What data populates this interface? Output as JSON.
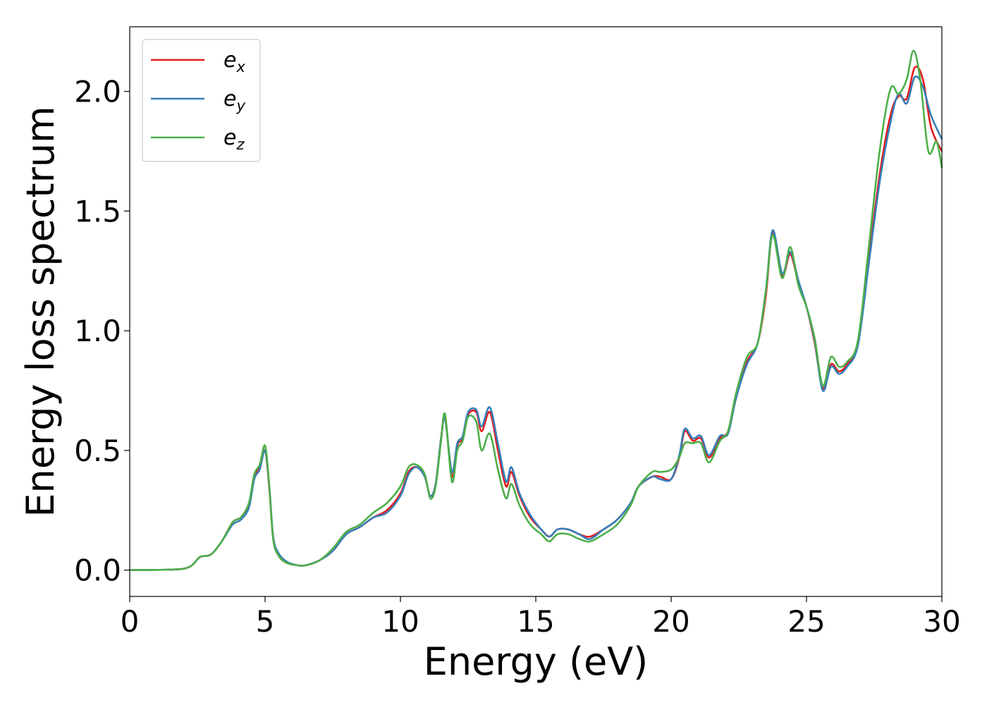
{
  "chart_data": {
    "type": "line",
    "title": "",
    "xlabel": "Energy (eV)",
    "ylabel": "Energy loss spectrum",
    "xlim": [
      0,
      30
    ],
    "ylim": [
      -0.11,
      2.27
    ],
    "xticks": [
      "0",
      "5",
      "10",
      "15",
      "20",
      "25",
      "30"
    ],
    "xtick_values": [
      0,
      5,
      10,
      15,
      20,
      25,
      30
    ],
    "yticks": [
      "0.0",
      "0.5",
      "1.0",
      "1.5",
      "2.0"
    ],
    "ytick_values": [
      0.0,
      0.5,
      1.0,
      1.5,
      2.0
    ],
    "grid": false,
    "legend_position": "top-left",
    "series": [
      {
        "name": "e_x",
        "legend_main": "e",
        "legend_sub": "x",
        "color": "#e41a1c",
        "points": [
          [
            0,
            0
          ],
          [
            1,
            0.001
          ],
          [
            1.5,
            0.002
          ],
          [
            2,
            0.006
          ],
          [
            2.3,
            0.02
          ],
          [
            2.6,
            0.055
          ],
          [
            3,
            0.065
          ],
          [
            3.4,
            0.12
          ],
          [
            3.8,
            0.2
          ],
          [
            4.1,
            0.22
          ],
          [
            4.4,
            0.27
          ],
          [
            4.6,
            0.39
          ],
          [
            4.8,
            0.43
          ],
          [
            5.0,
            0.5
          ],
          [
            5.15,
            0.35
          ],
          [
            5.3,
            0.13
          ],
          [
            5.5,
            0.06
          ],
          [
            5.8,
            0.03
          ],
          [
            6.2,
            0.02
          ],
          [
            6.5,
            0.02
          ],
          [
            7,
            0.04
          ],
          [
            7.5,
            0.08
          ],
          [
            8,
            0.15
          ],
          [
            8.5,
            0.18
          ],
          [
            9,
            0.22
          ],
          [
            9.5,
            0.25
          ],
          [
            10,
            0.32
          ],
          [
            10.3,
            0.41
          ],
          [
            10.6,
            0.43
          ],
          [
            10.9,
            0.39
          ],
          [
            11.1,
            0.31
          ],
          [
            11.3,
            0.36
          ],
          [
            11.5,
            0.55
          ],
          [
            11.65,
            0.64
          ],
          [
            11.9,
            0.39
          ],
          [
            12.1,
            0.52
          ],
          [
            12.3,
            0.55
          ],
          [
            12.5,
            0.65
          ],
          [
            12.8,
            0.66
          ],
          [
            13.0,
            0.58
          ],
          [
            13.3,
            0.66
          ],
          [
            13.6,
            0.5
          ],
          [
            13.9,
            0.35
          ],
          [
            14.1,
            0.41
          ],
          [
            14.4,
            0.31
          ],
          [
            14.8,
            0.22
          ],
          [
            15.2,
            0.17
          ],
          [
            15.5,
            0.14
          ],
          [
            15.8,
            0.17
          ],
          [
            16.2,
            0.17
          ],
          [
            16.6,
            0.15
          ],
          [
            17,
            0.14
          ],
          [
            17.5,
            0.17
          ],
          [
            18,
            0.21
          ],
          [
            18.5,
            0.28
          ],
          [
            18.8,
            0.35
          ],
          [
            19.3,
            0.39
          ],
          [
            19.6,
            0.39
          ],
          [
            20,
            0.38
          ],
          [
            20.3,
            0.47
          ],
          [
            20.5,
            0.58
          ],
          [
            20.8,
            0.54
          ],
          [
            21.1,
            0.55
          ],
          [
            21.4,
            0.47
          ],
          [
            21.8,
            0.55
          ],
          [
            22.1,
            0.58
          ],
          [
            22.4,
            0.72
          ],
          [
            22.8,
            0.87
          ],
          [
            23.2,
            0.95
          ],
          [
            23.5,
            1.15
          ],
          [
            23.75,
            1.41
          ],
          [
            24.1,
            1.23
          ],
          [
            24.4,
            1.32
          ],
          [
            24.7,
            1.2
          ],
          [
            25,
            1.1
          ],
          [
            25.3,
            0.95
          ],
          [
            25.6,
            0.76
          ],
          [
            25.9,
            0.86
          ],
          [
            26.2,
            0.83
          ],
          [
            26.5,
            0.86
          ],
          [
            26.9,
            0.95
          ],
          [
            27.3,
            1.3
          ],
          [
            27.7,
            1.65
          ],
          [
            28.1,
            1.9
          ],
          [
            28.4,
            1.98
          ],
          [
            28.7,
            1.97
          ],
          [
            29.0,
            2.1
          ],
          [
            29.3,
            2.05
          ],
          [
            29.6,
            1.85
          ],
          [
            30,
            1.75
          ]
        ]
      },
      {
        "name": "e_y",
        "legend_main": "e",
        "legend_sub": "y",
        "color": "#377eb8",
        "points": [
          [
            0,
            0
          ],
          [
            1,
            0.001
          ],
          [
            1.5,
            0.002
          ],
          [
            2,
            0.006
          ],
          [
            2.3,
            0.02
          ],
          [
            2.6,
            0.055
          ],
          [
            3,
            0.065
          ],
          [
            3.4,
            0.12
          ],
          [
            3.8,
            0.19
          ],
          [
            4.1,
            0.21
          ],
          [
            4.4,
            0.26
          ],
          [
            4.6,
            0.38
          ],
          [
            4.8,
            0.42
          ],
          [
            5.0,
            0.5
          ],
          [
            5.15,
            0.36
          ],
          [
            5.3,
            0.14
          ],
          [
            5.5,
            0.07
          ],
          [
            5.8,
            0.035
          ],
          [
            6.2,
            0.02
          ],
          [
            6.5,
            0.02
          ],
          [
            7,
            0.04
          ],
          [
            7.5,
            0.08
          ],
          [
            8,
            0.15
          ],
          [
            8.5,
            0.18
          ],
          [
            9,
            0.22
          ],
          [
            9.5,
            0.24
          ],
          [
            10,
            0.31
          ],
          [
            10.3,
            0.4
          ],
          [
            10.6,
            0.43
          ],
          [
            10.9,
            0.39
          ],
          [
            11.1,
            0.31
          ],
          [
            11.3,
            0.36
          ],
          [
            11.5,
            0.55
          ],
          [
            11.65,
            0.63
          ],
          [
            11.9,
            0.41
          ],
          [
            12.1,
            0.53
          ],
          [
            12.3,
            0.56
          ],
          [
            12.5,
            0.66
          ],
          [
            12.8,
            0.67
          ],
          [
            13.0,
            0.6
          ],
          [
            13.3,
            0.68
          ],
          [
            13.6,
            0.53
          ],
          [
            13.9,
            0.37
          ],
          [
            14.1,
            0.43
          ],
          [
            14.4,
            0.32
          ],
          [
            14.8,
            0.23
          ],
          [
            15.2,
            0.17
          ],
          [
            15.5,
            0.14
          ],
          [
            15.8,
            0.17
          ],
          [
            16.2,
            0.17
          ],
          [
            16.6,
            0.15
          ],
          [
            17,
            0.13
          ],
          [
            17.5,
            0.17
          ],
          [
            18,
            0.21
          ],
          [
            18.5,
            0.28
          ],
          [
            18.8,
            0.35
          ],
          [
            19.3,
            0.39
          ],
          [
            19.6,
            0.38
          ],
          [
            20,
            0.38
          ],
          [
            20.3,
            0.48
          ],
          [
            20.5,
            0.59
          ],
          [
            20.8,
            0.55
          ],
          [
            21.1,
            0.56
          ],
          [
            21.4,
            0.48
          ],
          [
            21.8,
            0.56
          ],
          [
            22.1,
            0.57
          ],
          [
            22.4,
            0.72
          ],
          [
            22.8,
            0.86
          ],
          [
            23.2,
            0.95
          ],
          [
            23.5,
            1.17
          ],
          [
            23.75,
            1.42
          ],
          [
            24.1,
            1.24
          ],
          [
            24.4,
            1.33
          ],
          [
            24.7,
            1.21
          ],
          [
            25,
            1.1
          ],
          [
            25.3,
            0.96
          ],
          [
            25.6,
            0.75
          ],
          [
            25.9,
            0.85
          ],
          [
            26.2,
            0.82
          ],
          [
            26.5,
            0.85
          ],
          [
            26.9,
            0.94
          ],
          [
            27.3,
            1.28
          ],
          [
            27.7,
            1.62
          ],
          [
            28.1,
            1.87
          ],
          [
            28.4,
            1.99
          ],
          [
            28.7,
            1.95
          ],
          [
            29.0,
            2.06
          ],
          [
            29.3,
            2.02
          ],
          [
            29.6,
            1.9
          ],
          [
            30,
            1.8
          ]
        ]
      },
      {
        "name": "e_z",
        "legend_main": "e",
        "legend_sub": "z",
        "color": "#4daf4a",
        "points": [
          [
            0,
            0
          ],
          [
            1,
            0.001
          ],
          [
            1.5,
            0.002
          ],
          [
            2,
            0.006
          ],
          [
            2.3,
            0.02
          ],
          [
            2.6,
            0.055
          ],
          [
            3,
            0.065
          ],
          [
            3.4,
            0.12
          ],
          [
            3.8,
            0.2
          ],
          [
            4.1,
            0.22
          ],
          [
            4.4,
            0.28
          ],
          [
            4.6,
            0.4
          ],
          [
            4.8,
            0.44
          ],
          [
            5.0,
            0.52
          ],
          [
            5.15,
            0.36
          ],
          [
            5.3,
            0.13
          ],
          [
            5.5,
            0.06
          ],
          [
            5.8,
            0.03
          ],
          [
            6.2,
            0.02
          ],
          [
            6.5,
            0.02
          ],
          [
            7,
            0.04
          ],
          [
            7.5,
            0.09
          ],
          [
            8,
            0.16
          ],
          [
            8.5,
            0.19
          ],
          [
            9,
            0.24
          ],
          [
            9.5,
            0.28
          ],
          [
            10,
            0.35
          ],
          [
            10.3,
            0.43
          ],
          [
            10.6,
            0.44
          ],
          [
            10.9,
            0.4
          ],
          [
            11.1,
            0.3
          ],
          [
            11.3,
            0.35
          ],
          [
            11.5,
            0.54
          ],
          [
            11.65,
            0.65
          ],
          [
            11.9,
            0.37
          ],
          [
            12.1,
            0.5
          ],
          [
            12.3,
            0.54
          ],
          [
            12.5,
            0.64
          ],
          [
            12.8,
            0.62
          ],
          [
            13.0,
            0.5
          ],
          [
            13.3,
            0.57
          ],
          [
            13.6,
            0.42
          ],
          [
            13.9,
            0.3
          ],
          [
            14.1,
            0.36
          ],
          [
            14.4,
            0.27
          ],
          [
            14.8,
            0.19
          ],
          [
            15.2,
            0.15
          ],
          [
            15.5,
            0.12
          ],
          [
            15.8,
            0.15
          ],
          [
            16.2,
            0.15
          ],
          [
            16.6,
            0.13
          ],
          [
            17,
            0.12
          ],
          [
            17.5,
            0.15
          ],
          [
            18,
            0.19
          ],
          [
            18.5,
            0.27
          ],
          [
            18.8,
            0.35
          ],
          [
            19.3,
            0.41
          ],
          [
            19.6,
            0.41
          ],
          [
            20,
            0.42
          ],
          [
            20.3,
            0.47
          ],
          [
            20.5,
            0.53
          ],
          [
            20.8,
            0.53
          ],
          [
            21.1,
            0.53
          ],
          [
            21.4,
            0.45
          ],
          [
            21.8,
            0.54
          ],
          [
            22.1,
            0.58
          ],
          [
            22.4,
            0.74
          ],
          [
            22.8,
            0.89
          ],
          [
            23.2,
            0.95
          ],
          [
            23.5,
            1.17
          ],
          [
            23.75,
            1.4
          ],
          [
            24.1,
            1.22
          ],
          [
            24.4,
            1.35
          ],
          [
            24.7,
            1.19
          ],
          [
            25,
            1.1
          ],
          [
            25.3,
            0.97
          ],
          [
            25.6,
            0.77
          ],
          [
            25.9,
            0.89
          ],
          [
            26.2,
            0.85
          ],
          [
            26.5,
            0.87
          ],
          [
            26.9,
            0.96
          ],
          [
            27.3,
            1.35
          ],
          [
            27.7,
            1.75
          ],
          [
            28.1,
            2.01
          ],
          [
            28.4,
            1.99
          ],
          [
            28.7,
            2.05
          ],
          [
            28.95,
            2.17
          ],
          [
            29.2,
            2.05
          ],
          [
            29.5,
            1.75
          ],
          [
            29.8,
            1.79
          ],
          [
            30,
            1.68
          ]
        ]
      }
    ]
  }
}
